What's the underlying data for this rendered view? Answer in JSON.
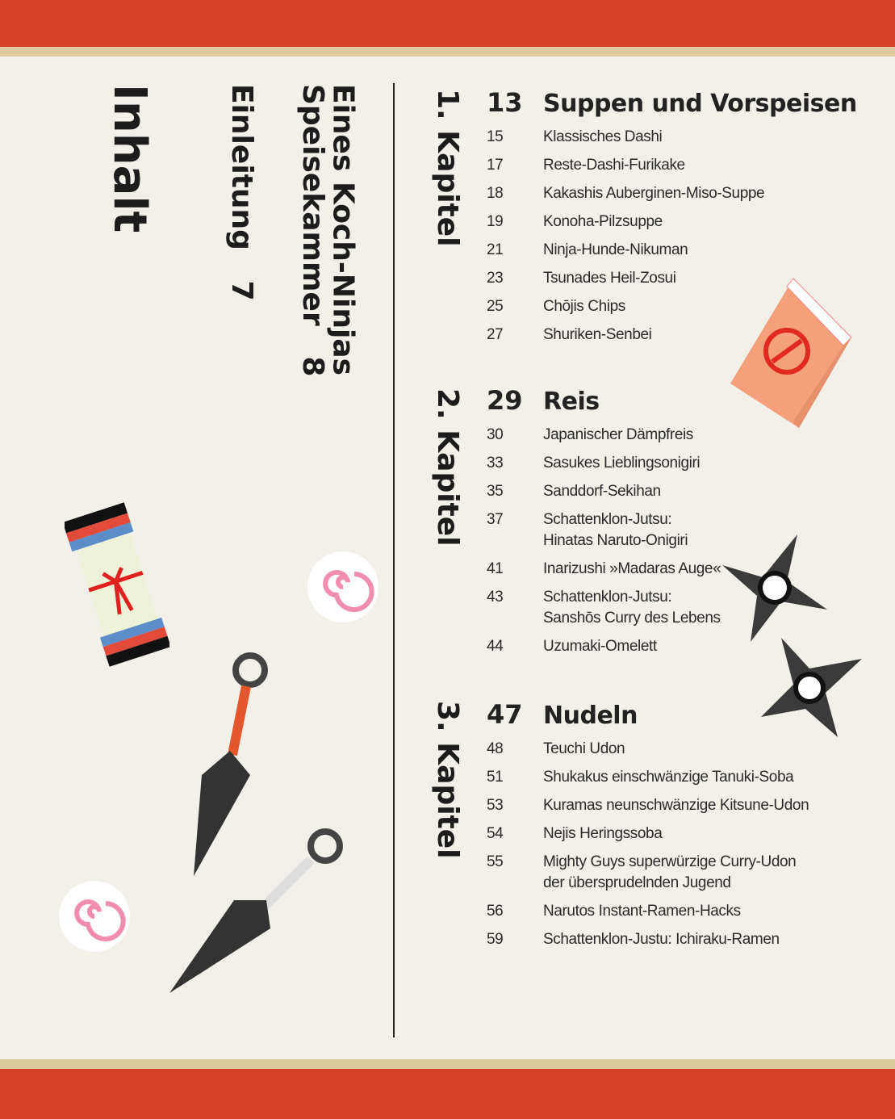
{
  "colors": {
    "band": "#d24128",
    "stripe": "#dccb9e",
    "paper": "#f3f0e9",
    "text": "#222222"
  },
  "title": "Inhalt",
  "front": [
    {
      "label": "Einleitung   7"
    },
    {
      "label": "Eines Koch-Ninjas\nSpeisekammer   8"
    }
  ],
  "chapters": [
    {
      "label": "1. Kapitel",
      "page": "13",
      "title": "Suppen und Vorspeisen",
      "entries": [
        {
          "page": "15",
          "title": "Klassisches Dashi"
        },
        {
          "page": "17",
          "title": "Reste-Dashi-Furikake"
        },
        {
          "page": "18",
          "title": "Kakashis Auberginen-Miso-Suppe"
        },
        {
          "page": "19",
          "title": "Konoha-Pilzsuppe"
        },
        {
          "page": "21",
          "title": "Ninja-Hunde-Nikuman"
        },
        {
          "page": "23",
          "title": "Tsunades Heil-Zosui"
        },
        {
          "page": "25",
          "title": "Chōjis Chips"
        },
        {
          "page": "27",
          "title": "Shuriken-Senbei"
        }
      ]
    },
    {
      "label": "2. Kapitel",
      "page": "29",
      "title": "Reis",
      "entries": [
        {
          "page": "30",
          "title": "Japanischer Dämpfreis"
        },
        {
          "page": "33",
          "title": "Sasukes Lieblingsonigiri"
        },
        {
          "page": "35",
          "title": "Sanddorf-Sekihan"
        },
        {
          "page": "37",
          "title": "Schattenklon-Jutsu:\nHinatas Naruto-Onigiri"
        },
        {
          "page": "41",
          "title": "Inarizushi »Madaras Auge«"
        },
        {
          "page": "43",
          "title": "Schattenklon-Jutsu:\nSanshōs Curry des Lebens"
        },
        {
          "page": "44",
          "title": "Uzumaki-Omelett"
        }
      ]
    },
    {
      "label": "3. Kapitel",
      "page": "47",
      "title": "Nudeln",
      "entries": [
        {
          "page": "48",
          "title": "Teuchi Udon"
        },
        {
          "page": "51",
          "title": "Shukakus einschwänzige Tanuki-Soba"
        },
        {
          "page": "53",
          "title": "Kuramas neunschwänzige Kitsune-Udon"
        },
        {
          "page": "54",
          "title": "Nejis Heringssoba"
        },
        {
          "page": "55",
          "title": "Mighty Guys superwürzige Curry-Udon\nder übersprudelnden Jugend"
        },
        {
          "page": "56",
          "title": "Narutos Instant-Ramen-Hacks"
        },
        {
          "page": "59",
          "title": "Schattenklon-Justu: Ichiraku-Ramen"
        }
      ]
    }
  ],
  "icons": [
    "book-icon",
    "shuriken-icon",
    "kunai-icon",
    "scroll-icon",
    "narutomaki-icon"
  ]
}
